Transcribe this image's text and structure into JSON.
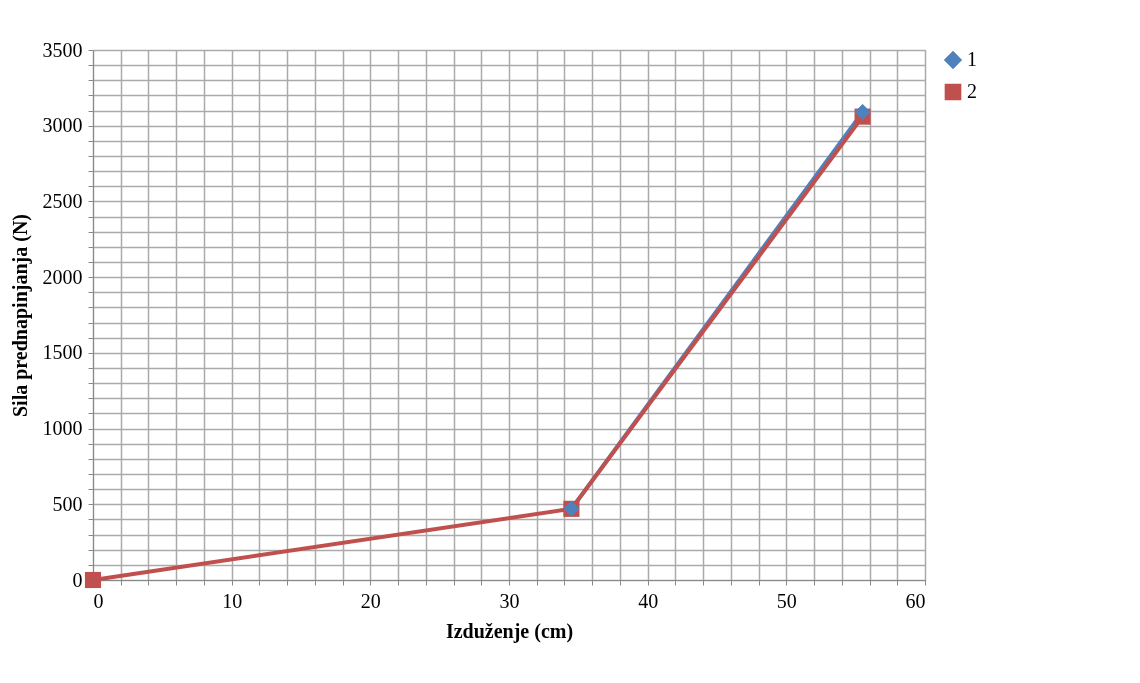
{
  "chart_data": {
    "type": "line",
    "xlabel": "Izduženje (cm)",
    "ylabel": "Sila prednapinjanja (N)",
    "x": [
      0,
      34.5,
      55.5
    ],
    "series": [
      {
        "name": "1",
        "color": "#4f81bd",
        "values": [
          null,
          470,
          3090
        ],
        "marker": "diamond"
      },
      {
        "name": "2",
        "color": "#c0504d",
        "values": [
          0,
          470,
          3060
        ],
        "marker": "square"
      }
    ],
    "xlim": [
      0,
      60
    ],
    "xticks": [
      0,
      {
        "value": 2,
        "label": null
      },
      {
        "value": 4,
        "label": null
      },
      {
        "value": 6,
        "label": null
      },
      {
        "value": 8,
        "label": null
      },
      10,
      {
        "value": 12,
        "label": null
      },
      {
        "value": 14,
        "label": null
      },
      {
        "value": 16,
        "label": null
      },
      {
        "value": 18,
        "label": null
      },
      20,
      {
        "value": 22,
        "label": null
      },
      {
        "value": 24,
        "label": null
      },
      {
        "value": 26,
        "label": null
      },
      {
        "value": 28,
        "label": null
      },
      30,
      {
        "value": 32,
        "label": null
      },
      {
        "value": 34,
        "label": null
      },
      {
        "value": 36,
        "label": null
      },
      {
        "value": 38,
        "label": null
      },
      40,
      {
        "value": 42,
        "label": null
      },
      {
        "value": 44,
        "label": null
      },
      {
        "value": 46,
        "label": null
      },
      {
        "value": 48,
        "label": null
      },
      50,
      {
        "value": 52,
        "label": null
      },
      {
        "value": 54,
        "label": null
      },
      {
        "value": 56,
        "label": null
      },
      {
        "value": 58,
        "label": null
      },
      60
    ],
    "ylim": [
      0,
      3500
    ],
    "yticks": [
      0,
      {
        "value": 100,
        "label": null
      },
      {
        "value": 200,
        "label": null
      },
      {
        "value": 300,
        "label": null
      },
      {
        "value": 400,
        "label": null
      },
      500,
      {
        "value": 600,
        "label": null
      },
      {
        "value": 700,
        "label": null
      },
      {
        "value": 800,
        "label": null
      },
      {
        "value": 900,
        "label": null
      },
      1000,
      {
        "value": 1100,
        "label": null
      },
      {
        "value": 1200,
        "label": null
      },
      {
        "value": 1300,
        "label": null
      },
      {
        "value": 1400,
        "label": null
      },
      1500,
      {
        "value": 1600,
        "label": null
      },
      {
        "value": 1700,
        "label": null
      },
      {
        "value": 1800,
        "label": null
      },
      {
        "value": 1900,
        "label": null
      },
      2000,
      {
        "value": 2100,
        "label": null
      },
      {
        "value": 2200,
        "label": null
      },
      {
        "value": 2300,
        "label": null
      },
      {
        "value": 2400,
        "label": null
      },
      2500,
      {
        "value": 2600,
        "label": null
      },
      {
        "value": 2700,
        "label": null
      },
      {
        "value": 2800,
        "label": null
      },
      {
        "value": 2900,
        "label": null
      },
      3000,
      {
        "value": 3100,
        "label": null
      },
      {
        "value": 3200,
        "label": null
      },
      {
        "value": 3300,
        "label": null
      },
      {
        "value": 3400,
        "label": null
      },
      3500
    ],
    "grid": true,
    "legend": "right",
    "line_style": "solid"
  }
}
